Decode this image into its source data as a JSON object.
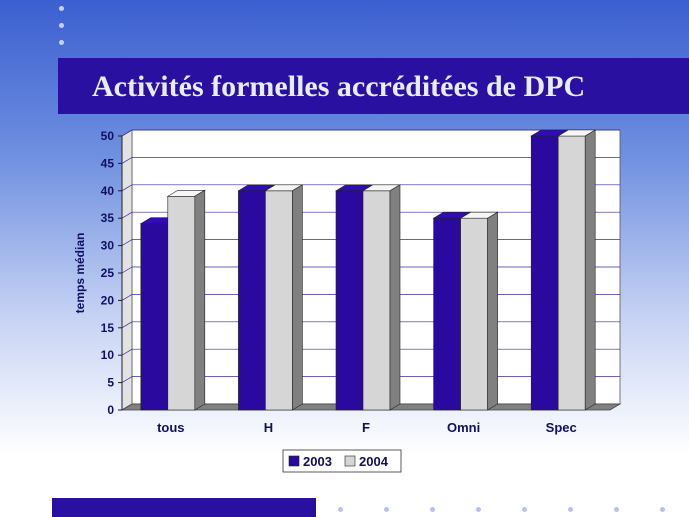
{
  "slide": {
    "title": "Activités formelles accréditées de DPC"
  },
  "colors": {
    "title_band": "#2a10a0",
    "series_2003": "#2a0a9e",
    "series_2004": "#d6d6d6",
    "floor": "#808080"
  },
  "chart_data": {
    "type": "bar",
    "title": "",
    "xlabel": "",
    "ylabel": "temps médian",
    "categories": [
      "tous",
      "H",
      "F",
      "Omni",
      "Spec"
    ],
    "series": [
      {
        "name": "2003",
        "values": [
          34,
          40,
          40,
          35,
          50
        ]
      },
      {
        "name": "2004",
        "values": [
          39,
          40,
          40,
          35,
          50
        ]
      }
    ],
    "ylim": [
      0,
      50
    ],
    "yticks": [
      0,
      5,
      10,
      15,
      20,
      25,
      30,
      35,
      40,
      45,
      50
    ],
    "grid": true,
    "legend_position": "bottom",
    "style": "3d"
  }
}
